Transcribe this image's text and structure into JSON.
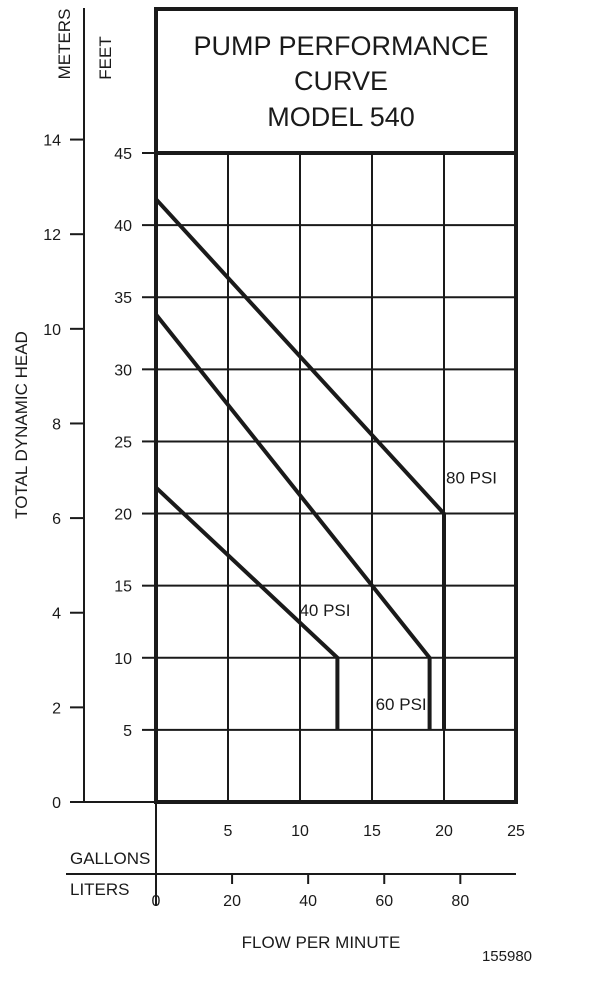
{
  "chart_data": {
    "type": "line",
    "title_lines": [
      "PUMP PERFORMANCE",
      "CURVE",
      "MODEL 540"
    ],
    "ylabel": "TOTAL DYNAMIC HEAD",
    "y_units": [
      "METERS",
      "FEET"
    ],
    "xlabel": "FLOW PER MINUTE",
    "x_units": [
      "GALLONS",
      "LITERS"
    ],
    "y_feet_ticks": [
      5,
      10,
      15,
      20,
      25,
      30,
      35,
      40,
      45
    ],
    "y_meters_ticks": [
      0,
      2,
      4,
      6,
      8,
      10,
      12,
      14
    ],
    "x_gallons_ticks": [
      5,
      10,
      15,
      20,
      25
    ],
    "x_liters_ticks": [
      0,
      20,
      40,
      60,
      80
    ],
    "xlim": [
      0,
      25
    ],
    "ylim": [
      0,
      45
    ],
    "grid": true,
    "series": [
      {
        "name": "80 PSI",
        "x": [
          0,
          20,
          20
        ],
        "y": [
          41.8,
          20,
          5
        ]
      },
      {
        "name": "60 PSI",
        "x": [
          0,
          19,
          19
        ],
        "y": [
          33.8,
          10,
          5
        ]
      },
      {
        "name": "40 PSI",
        "x": [
          0,
          12.6,
          12.6
        ],
        "y": [
          21.8,
          10,
          5
        ]
      }
    ],
    "figure_id": "155980"
  }
}
